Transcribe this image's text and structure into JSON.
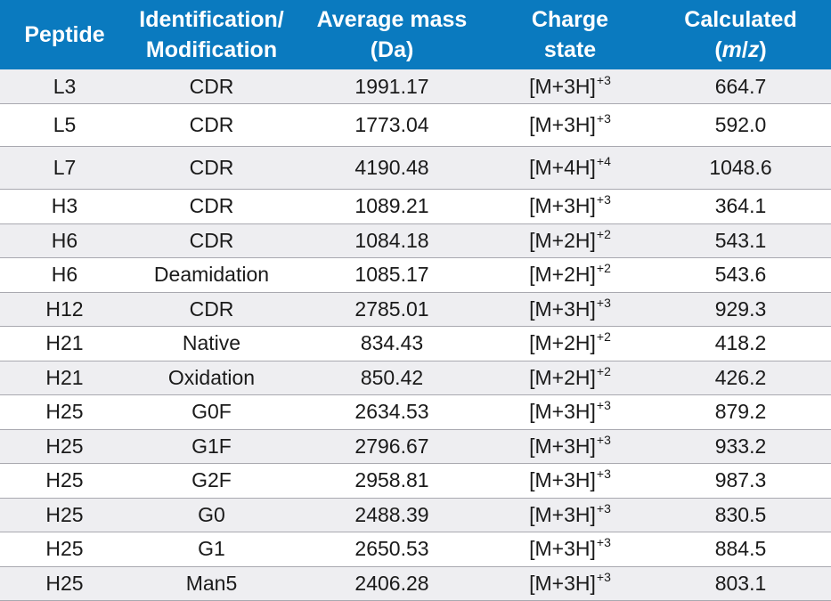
{
  "table": {
    "headers": {
      "peptide": "Peptide",
      "identification_line1": "Identification/",
      "identification_line2": "Modification",
      "mass_line1": "Average mass",
      "mass_line2": "(Da)",
      "charge_line1": "Charge",
      "charge_line2": "state",
      "calc_line1": "Calculated",
      "calc_open": "(",
      "calc_m": "m",
      "calc_slash": "/",
      "calc_z": "z",
      "calc_close": ")"
    },
    "rows": [
      {
        "peptide": "L3",
        "identification": "CDR",
        "mass": "1991.17",
        "charge_base": "[M+3H]",
        "charge_sup": "+3",
        "mz": "664.7"
      },
      {
        "peptide": "L5",
        "identification": "CDR",
        "mass": "1773.04",
        "charge_base": "[M+3H]",
        "charge_sup": "+3",
        "mz": "592.0"
      },
      {
        "peptide": "L7",
        "identification": "CDR",
        "mass": "4190.48",
        "charge_base": "[M+4H]",
        "charge_sup": "+4",
        "mz": "1048.6"
      },
      {
        "peptide": "H3",
        "identification": "CDR",
        "mass": "1089.21",
        "charge_base": "[M+3H]",
        "charge_sup": "+3",
        "mz": "364.1"
      },
      {
        "peptide": "H6",
        "identification": "CDR",
        "mass": "1084.18",
        "charge_base": "[M+2H]",
        "charge_sup": "+2",
        "mz": "543.1"
      },
      {
        "peptide": "H6",
        "identification": "Deamidation",
        "mass": "1085.17",
        "charge_base": "[M+2H]",
        "charge_sup": "+2",
        "mz": "543.6"
      },
      {
        "peptide": "H12",
        "identification": "CDR",
        "mass": "2785.01",
        "charge_base": "[M+3H]",
        "charge_sup": "+3",
        "mz": "929.3"
      },
      {
        "peptide": "H21",
        "identification": "Native",
        "mass": "834.43",
        "charge_base": "[M+2H]",
        "charge_sup": "+2",
        "mz": "418.2"
      },
      {
        "peptide": "H21",
        "identification": "Oxidation",
        "mass": "850.42",
        "charge_base": "[M+2H]",
        "charge_sup": "+2",
        "mz": "426.2"
      },
      {
        "peptide": "H25",
        "identification": "G0F",
        "mass": "2634.53",
        "charge_base": "[M+3H]",
        "charge_sup": "+3",
        "mz": "879.2"
      },
      {
        "peptide": "H25",
        "identification": "G1F",
        "mass": "2796.67",
        "charge_base": "[M+3H]",
        "charge_sup": "+3",
        "mz": "933.2"
      },
      {
        "peptide": "H25",
        "identification": "G2F",
        "mass": "2958.81",
        "charge_base": "[M+3H]",
        "charge_sup": "+3",
        "mz": "987.3"
      },
      {
        "peptide": "H25",
        "identification": "G0",
        "mass": "2488.39",
        "charge_base": "[M+3H]",
        "charge_sup": "+3",
        "mz": "830.5"
      },
      {
        "peptide": "H25",
        "identification": "G1",
        "mass": "2650.53",
        "charge_base": "[M+3H]",
        "charge_sup": "+3",
        "mz": "884.5"
      },
      {
        "peptide": "H25",
        "identification": "Man5",
        "mass": "2406.28",
        "charge_base": "[M+3H]",
        "charge_sup": "+3",
        "mz": "803.1"
      }
    ]
  },
  "colors": {
    "header_bg": "#0a7abf",
    "header_text": "#ffffff",
    "alt_row_bg": "#eeeef1",
    "row_divider": "#a9a9b0"
  }
}
